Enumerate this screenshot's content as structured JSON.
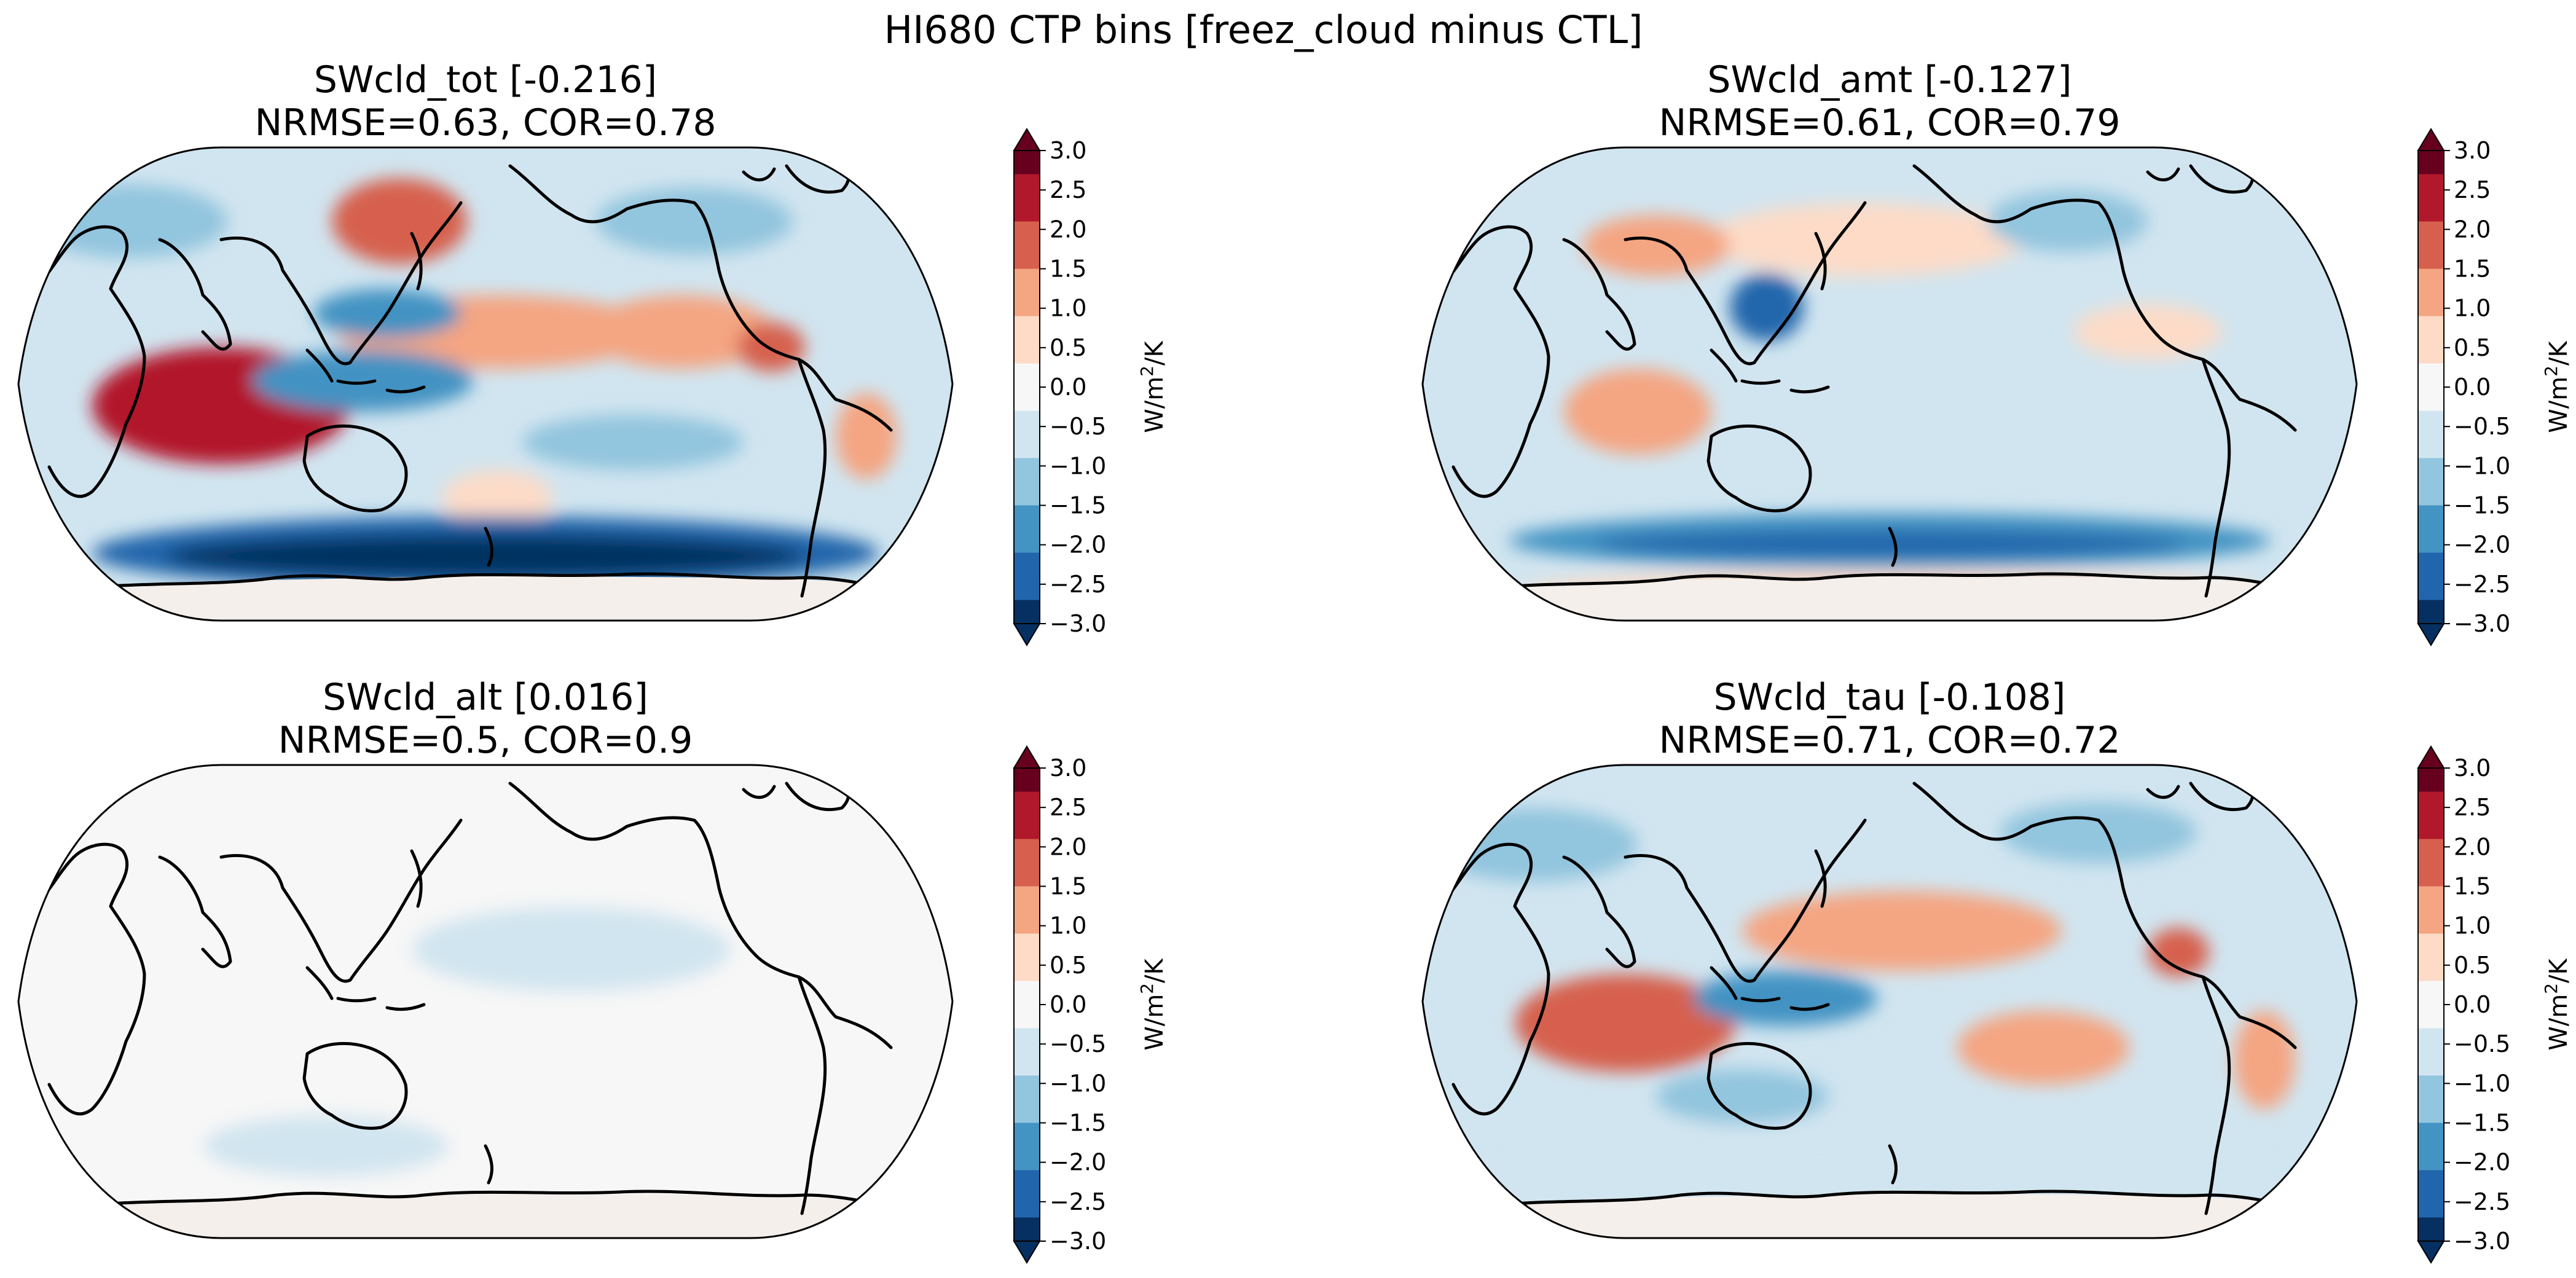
{
  "figure": {
    "suptitle": "HI680 CTP bins [freez_cloud minus CTL]"
  },
  "colors": {
    "neg_strong": "#053061",
    "neg": "#2166ac",
    "neg_mid": "#4393c3",
    "neg_light": "#92c5de",
    "neg_pale": "#d1e5f0",
    "near_zero": "#f7f7f7",
    "pos_pale": "#fddbc7",
    "pos_light": "#f4a582",
    "pos_mid": "#d6604d",
    "pos": "#b2182b",
    "pos_strong": "#67001f",
    "coast": "#000000"
  },
  "colorbar": {
    "ticks": [
      "3.0",
      "2.5",
      "2.0",
      "1.5",
      "1.0",
      "0.5",
      "0.0",
      "−0.5",
      "−1.0",
      "−1.5",
      "−2.0",
      "−2.5",
      "−3.0"
    ],
    "label_base": "W/m",
    "label_sup": "2",
    "label_tail": "/K",
    "vmin": -3.0,
    "vmax": 3.0,
    "extend": "both"
  },
  "chart_data": [
    {
      "type": "map",
      "projection": "Robinson (Pacific-centered)",
      "title": "SWcld_tot [-0.216]",
      "subtitle": "NRMSE=0.63, COR=0.78",
      "field_intensity": 1.0,
      "pattern": "tot"
    },
    {
      "type": "map",
      "projection": "Robinson (Pacific-centered)",
      "title": "SWcld_amt [-0.127]",
      "subtitle": "NRMSE=0.61, COR=0.79",
      "field_intensity": 0.6,
      "pattern": "amt"
    },
    {
      "type": "map",
      "projection": "Robinson (Pacific-centered)",
      "title": "SWcld_alt [0.016]",
      "subtitle": "NRMSE=0.5, COR=0.9",
      "field_intensity": 0.05,
      "pattern": "alt"
    },
    {
      "type": "map",
      "projection": "Robinson (Pacific-centered)",
      "title": "SWcld_tau [-0.108]",
      "subtitle": "NRMSE=0.71, COR=0.72",
      "field_intensity": 0.8,
      "pattern": "tau"
    }
  ]
}
